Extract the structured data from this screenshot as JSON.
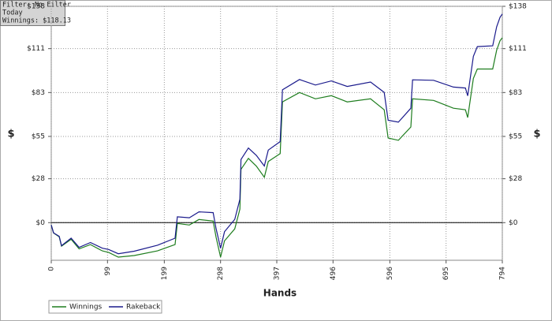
{
  "chart_data": {
    "type": "line",
    "annotations": [
      "Filter: No Filter",
      "Today",
      "Winnings: $118.13"
    ],
    "x_label": "Hands",
    "y_label": "$",
    "x": [
      0,
      4,
      14,
      18,
      35,
      49,
      69,
      90,
      101,
      118,
      146,
      187,
      218,
      222,
      243,
      260,
      285,
      290,
      298,
      305,
      323,
      332,
      334,
      347,
      361,
      375,
      382,
      403,
      407,
      437,
      465,
      493,
      521,
      562,
      586,
      593,
      611,
      633,
      636,
      673,
      708,
      729,
      733,
      743,
      750,
      777,
      784,
      790,
      794
    ],
    "series": [
      {
        "name": "Winnings",
        "color": "#1e7d1e",
        "values": [
          -1.5,
          -6.6,
          -9,
          -15,
          -10.6,
          -16.7,
          -14,
          -18,
          -19,
          -22,
          -21,
          -18,
          -14,
          -0.5,
          -1.5,
          2,
          1,
          -9,
          -22,
          -11.6,
          -4,
          8.6,
          34,
          41,
          36,
          29,
          39,
          44,
          77,
          83,
          79,
          81,
          77,
          79,
          72,
          54,
          52.5,
          61,
          79,
          78,
          73,
          72,
          67,
          92,
          98,
          98,
          110,
          116,
          118
        ]
      },
      {
        "name": "Rakeback",
        "color": "#1a1a8c",
        "values": [
          -1.5,
          -6.5,
          -8.7,
          -14.7,
          -9.9,
          -15.8,
          -12.7,
          -16.3,
          -17.1,
          -19.8,
          -18.2,
          -14.4,
          -9.9,
          3.7,
          3.1,
          6.9,
          6.4,
          -3.5,
          -16.3,
          -5.8,
          2.1,
          14.9,
          40.3,
          47.6,
          42.9,
          36.1,
          46.3,
          51.7,
          84.7,
          91.3,
          87.8,
          90.4,
          86.9,
          89.7,
          83.1,
          65.3,
          64.1,
          73,
          91.1,
          90.8,
          86.5,
          85.9,
          80.9,
          106.1,
          112.3,
          112.8,
          124.9,
          131,
          133.1
        ]
      }
    ],
    "xlim": [
      0,
      794
    ],
    "xticks": [
      0,
      99,
      199,
      298,
      397,
      496,
      596,
      695,
      794
    ],
    "ylim": [
      -24,
      138
    ],
    "yticks": [
      {
        "value": 0,
        "label": "$0"
      },
      {
        "value": 28,
        "label": "$28"
      },
      {
        "value": 55,
        "label": "$55"
      },
      {
        "value": 83,
        "label": "$83"
      },
      {
        "value": 111,
        "label": "$111"
      },
      {
        "value": 138,
        "label": "$138"
      }
    ],
    "grid": true,
    "legend": "bottom-left"
  }
}
